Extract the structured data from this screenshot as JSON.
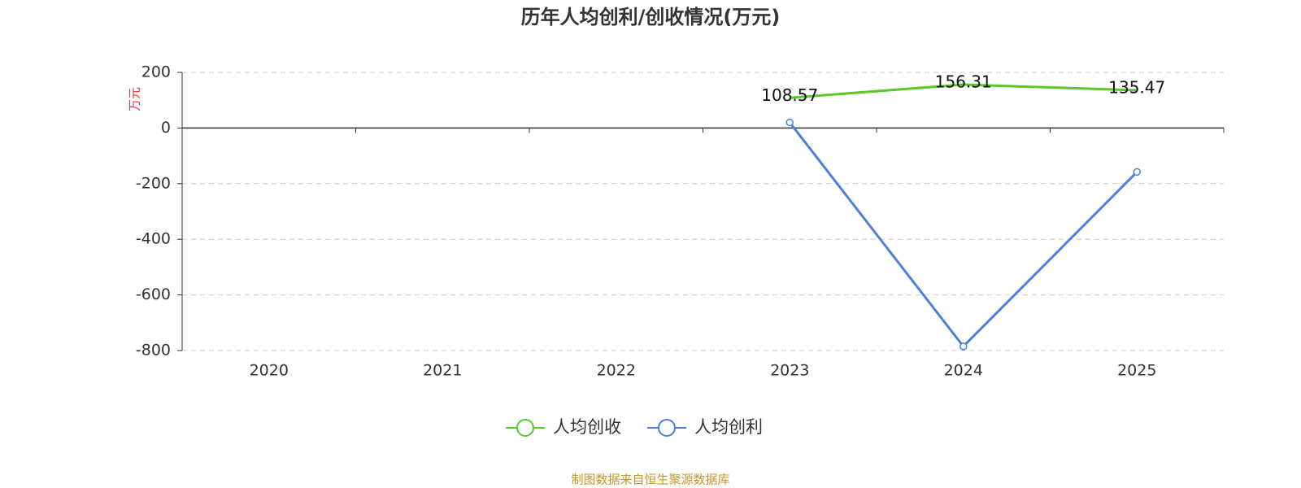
{
  "chart_data": {
    "type": "line",
    "title": "历年人均创利/创收情况(万元)",
    "y_label": "万元",
    "categories": [
      "2020",
      "2021",
      "2022",
      "2023",
      "2024",
      "2025"
    ],
    "series": [
      {
        "name": "人均创收",
        "color": "#5cc72a",
        "values": [
          null,
          null,
          null,
          108.57,
          156.31,
          135.47
        ],
        "labels": true,
        "markers": false
      },
      {
        "name": "人均创利",
        "color": "#4f7fdc",
        "values": [
          null,
          null,
          null,
          20,
          -785,
          -158
        ],
        "labels": false,
        "markers": true
      }
    ],
    "ylim": [
      -800,
      200
    ],
    "yticks": [
      -800,
      -600,
      -400,
      -200,
      0,
      200
    ],
    "grid": true,
    "legend": "bottom",
    "source": "制图数据来自恒生聚源数据库"
  }
}
